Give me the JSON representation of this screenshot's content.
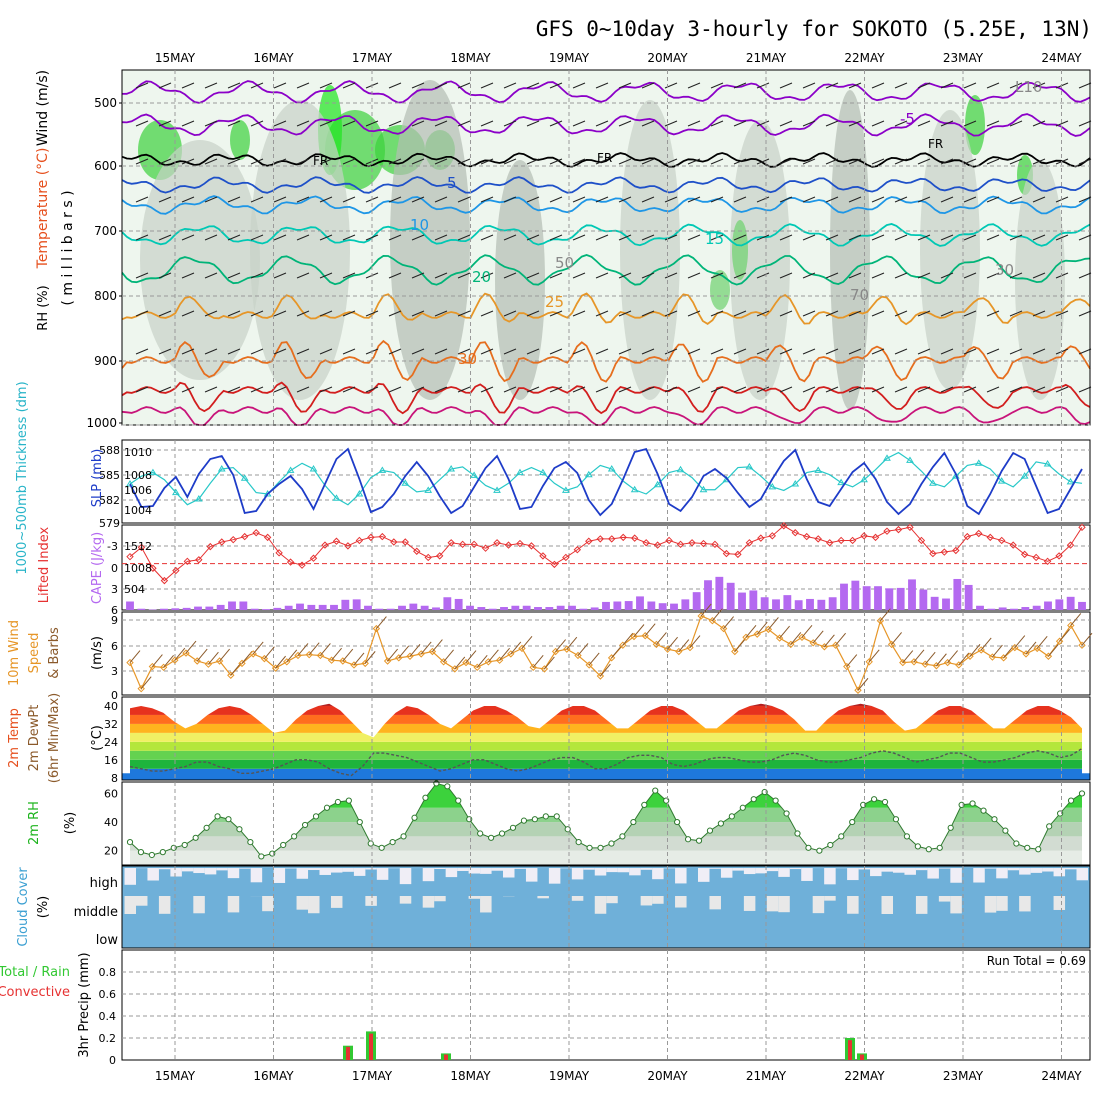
{
  "title": "GFS 0~10day 3-hourly for SOKOTO (5.25E, 13N)",
  "colors": {
    "temp_pos": "#ff8c00",
    "temp_neg": "#8b00c8",
    "iso5": "#1e50c8",
    "iso10": "#1e96e6",
    "iso15": "#00c8b4",
    "iso20": "#00b478",
    "iso25": "#e69628",
    "iso30": "#e66e1e",
    "rh": "#00c800",
    "cloud": "#6fb0d9",
    "slp": "#1e3cc8",
    "thickness": "#28c8c8",
    "lifted": "#e63232",
    "cape": "#b469f0",
    "wind10": "#e69628",
    "precip_total": "#32c832",
    "precip_conv": "#e63232"
  },
  "dates": [
    "15MAY",
    "16MAY",
    "17MAY",
    "18MAY",
    "19MAY",
    "20MAY",
    "21MAY",
    "22MAY",
    "23MAY",
    "24MAY"
  ],
  "panels": {
    "upper_air": {
      "ylabel_wind": "Wind (m/s)",
      "ylabel_temp": "Temperature (°C)",
      "ylabel_rh": "RH (%)",
      "ylabel_pressure": "( m i l l i b a r s )",
      "yticks": [
        "500",
        "600",
        "700",
        "800",
        "900",
        "1000"
      ],
      "fr_label": "FR",
      "contour_labels": [
        "-5",
        "5",
        "10",
        "15",
        "20",
        "25",
        "30",
        "50",
        "L10",
        "30",
        "70"
      ]
    },
    "slp": {
      "ylabel_left": "1000~500mb Thickness (dm)",
      "ylabel_right": "SLP (mb)",
      "yticks_left": [
        "588",
        "585",
        "582",
        "579"
      ],
      "yticks_right": [
        "1010",
        "1008",
        "1006",
        "1004"
      ]
    },
    "cape": {
      "ylabel_left": "Lifted Index",
      "ylabel_right": "CAPE (J/kg)",
      "yticks_left": [
        "-3",
        "0",
        "3",
        "6"
      ],
      "yticks_right": [
        "1512",
        "1008",
        "504"
      ]
    },
    "wind10": {
      "ylabel1": "10m Wind",
      "ylabel2": "Speed",
      "ylabel3": "& Barbs",
      "ylabel_unit": "(m/s)",
      "yticks": [
        "9",
        "6",
        "3",
        "0"
      ]
    },
    "temp2m": {
      "ylabel1": "2m Temp",
      "ylabel2": "2m DewPt",
      "ylabel3": "(6hr Min/Max)",
      "ylabel_unit": "(°C)",
      "yticks": [
        "40",
        "32",
        "24",
        "16",
        "8"
      ]
    },
    "rh2m": {
      "ylabel": "2m RH",
      "ylabel_unit": "(%)",
      "yticks": [
        "60",
        "40",
        "20"
      ]
    },
    "cloud": {
      "ylabel": "Cloud Cover",
      "ylabel_unit": "(%)",
      "levels": [
        "high",
        "middle",
        "low"
      ]
    },
    "precip": {
      "ylabel_left1": "Total / Rain",
      "ylabel_left2": "Convective",
      "ylabel": "3hr Precip (mm)",
      "yticks": [
        "0.8",
        "0.6",
        "0.4",
        "0.2",
        "0"
      ],
      "run_total": "Run Total = 0.69"
    }
  },
  "chart_data": [
    {
      "type": "line",
      "panel": "slp",
      "series": [
        {
          "name": "SLP (mb)",
          "values": [
            1006.5,
            1004.2,
            1004.3,
            1006.1,
            1007.2,
            1005.2,
            1007.5,
            1009.0,
            1009.3,
            1007.4,
            1003.6,
            1003.8,
            1005.5,
            1006.5,
            1007.3,
            1006.0,
            1004.0,
            1006.5,
            1009.0,
            1010.0,
            1007.0,
            1003.7,
            1004.2,
            1005.5,
            1007.3,
            1008.7,
            1007.3,
            1005.3,
            1003.6,
            1004.3,
            1006.2,
            1008.1,
            1009.3,
            1007.0,
            1004.0,
            1004.2,
            1006.3,
            1008.1,
            1008.7,
            1007.6,
            1004.9,
            1003.4,
            1004.5,
            1007.0,
            1009.7,
            1010.0,
            1007.5,
            1004.5,
            1003.8,
            1005.2,
            1007.3,
            1008.0,
            1007.1,
            1005.6,
            1004.2,
            1005.0,
            1007.0,
            1008.8,
            1009.9,
            1007.0,
            1004.7,
            1004.3,
            1006.0,
            1007.7,
            1008.6,
            1007.0,
            1004.7,
            1003.5,
            1004.5,
            1006.5,
            1008.2,
            1009.6,
            1007.5,
            1004.3,
            1003.5,
            1005.5,
            1007.8,
            1009.6,
            1009.0,
            1006.3,
            1003.6,
            1004.0,
            1006.0,
            1008.0
          ]
        },
        {
          "name": "1000~500mb Thickness (dm)",
          "values": [
            583.4,
            584.5,
            585.0,
            584.0,
            582.2,
            580.5,
            581.3,
            583.5,
            585.5,
            585.7,
            584.2,
            582.2,
            582.0,
            583.7,
            585.3,
            586.3,
            585.5,
            583.2,
            581.4,
            580.5,
            582.0,
            584.3,
            585.3,
            585.0,
            583.5,
            582.3,
            582.5,
            584.0,
            585.5,
            585.8,
            584.6,
            583.2,
            582.5,
            583.5,
            585.0,
            585.7,
            585.0,
            583.5,
            582.5,
            583.0,
            584.7,
            586.0,
            585.5,
            583.8,
            582.6,
            582.0,
            583.3,
            585.0,
            585.4,
            584.3,
            582.6,
            582.6,
            584.0,
            585.7,
            585.8,
            584.5,
            583.0,
            582.5,
            583.4,
            585.0,
            585.3,
            584.7,
            583.6,
            583.0,
            584.0,
            585.4,
            587.0,
            587.8,
            586.7,
            585.2,
            583.5,
            583.0,
            584.5,
            586.0,
            586.3,
            585.5,
            583.8,
            583.0,
            584.5,
            586.5,
            586.2,
            584.8,
            583.7,
            583.5
          ]
        }
      ],
      "ylim_slp": [
        1003,
        1010.5
      ],
      "ylim_thickness": [
        578.5,
        589
      ]
    },
    {
      "type": "bar",
      "panel": "cape",
      "series": [
        {
          "name": "CAPE (J/kg)",
          "values": [
            200,
            30,
            10,
            30,
            40,
            50,
            80,
            80,
            120,
            200,
            200,
            30,
            20,
            50,
            100,
            150,
            120,
            120,
            120,
            240,
            250,
            100,
            30,
            30,
            100,
            150,
            100,
            60,
            300,
            260,
            100,
            70,
            30,
            70,
            100,
            100,
            70,
            70,
            100,
            100,
            30,
            60,
            190,
            200,
            210,
            320,
            200,
            160,
            150,
            250,
            420,
            700,
            780,
            640,
            410,
            460,
            300,
            250,
            350,
            230,
            260,
            240,
            300,
            620,
            690,
            560,
            560,
            510,
            520,
            720,
            480,
            310,
            270,
            730,
            590,
            100,
            30,
            60,
            30,
            70,
            100,
            200,
            250,
            310,
            190
          ]
        },
        {
          "name": "Lifted Index",
          "values": [
            -0.9,
            -2.1,
            0.6,
            2.2,
            0.9,
            -0.3,
            -0.5,
            -2.2,
            -2.8,
            -3.1,
            -3.5,
            -4.0,
            -3.4,
            -1.4,
            -0.2,
            0.2,
            -0.7,
            -2.4,
            -2.9,
            -2.3,
            -3.0,
            -3.4,
            -3.5,
            -2.8,
            -2.8,
            -1.6,
            -0.8,
            -1.0,
            -2.7,
            -2.5,
            -2.5,
            -2.0,
            -2.7,
            -2.4,
            -2.6,
            -2.3,
            -1.0,
            0.1,
            -0.8,
            -1.8,
            -2.9,
            -3.2,
            -3.2,
            -3.4,
            -3.3,
            -2.7,
            -2.4,
            -3.0,
            -2.5,
            -2.7,
            -2.6,
            -2.5,
            -1.3,
            -1.2,
            -2.7,
            -3.3,
            -3.6,
            -4.9,
            -4.0,
            -3.5,
            -3.2,
            -2.7,
            -3.0,
            -3.0,
            -3.6,
            -3.4,
            -4.2,
            -4.4,
            -4.7,
            -3.0,
            -1.3,
            -1.5,
            -1.7,
            -3.5,
            -3.9,
            -3.4,
            -3.0,
            -2.4,
            -1.2,
            -0.8,
            -0.3,
            -1.0,
            -2.4,
            -4.7
          ]
        }
      ],
      "ylim_cape": [
        0,
        2000
      ],
      "ylim_li": [
        6,
        -5
      ]
    },
    {
      "type": "line",
      "panel": "wind10",
      "series": [
        {
          "name": "10m Wind Speed",
          "values": [
            4.1,
            0.8,
            3.6,
            3.5,
            4.4,
            5.3,
            4.3,
            3.9,
            4.3,
            2.5,
            4.0,
            5.2,
            4.6,
            3.4,
            4.2,
            5.0,
            5.1,
            5.0,
            4.4,
            4.3,
            3.8,
            4.0,
            8.4,
            4.3,
            4.7,
            4.9,
            5.2,
            5.5,
            4.2,
            3.3,
            4.1,
            3.5,
            4.2,
            4.4,
            5.2,
            5.9,
            3.5,
            3.3,
            5.5,
            5.8,
            5.0,
            3.8,
            2.4,
            4.7,
            6.3,
            7.4,
            7.5,
            6.4,
            5.8,
            5.5,
            6.0,
            10.0,
            9.4,
            8.4,
            5.5,
            7.3,
            7.7,
            8.3,
            7.2,
            6.4,
            7.3,
            6.6,
            6.1,
            6.3,
            3.6,
            0.6,
            4.2,
            9.4,
            6.4,
            4.1,
            4.2,
            3.9,
            3.7,
            4.1,
            3.8,
            4.9,
            5.7,
            4.8,
            4.7,
            6.0,
            5.2,
            5.9,
            4.9,
            6.8,
            8.8,
            6.3
          ]
        }
      ],
      "ylim": [
        0,
        10.5
      ]
    },
    {
      "type": "area",
      "panel": "temp2m",
      "series": [
        {
          "name": "2m Temp",
          "values": [
            39,
            40,
            39,
            37,
            33,
            30,
            32,
            36,
            39,
            40,
            39,
            36,
            32,
            28,
            29,
            34,
            38,
            40,
            41,
            38,
            33,
            28,
            26,
            32,
            37,
            40,
            39,
            36,
            32,
            30,
            34,
            38,
            40,
            40,
            38,
            35,
            31,
            30,
            34,
            38,
            40,
            40,
            38,
            34,
            30,
            30,
            34,
            38,
            40,
            40,
            38,
            34,
            30,
            30,
            34,
            38,
            40,
            41,
            40,
            38,
            34,
            29,
            29,
            34,
            38,
            40,
            41,
            40,
            38,
            33,
            29,
            30,
            34,
            38,
            40,
            40,
            38,
            34,
            30,
            30,
            34,
            38,
            40,
            40,
            38,
            35,
            30
          ]
        },
        {
          "name": "2m DewPt",
          "values": [
            13,
            12,
            11,
            11,
            12,
            13,
            15,
            15,
            13,
            12,
            10,
            10,
            11,
            12,
            14,
            16,
            16,
            15,
            12,
            10,
            9,
            13,
            19,
            19,
            18,
            17,
            15,
            13,
            11,
            12,
            14,
            16,
            16,
            14,
            12,
            11,
            12,
            14,
            16,
            17,
            17,
            15,
            12,
            12,
            14,
            17,
            18,
            18,
            17,
            14,
            13,
            14,
            16,
            17,
            17,
            16,
            15,
            15,
            16,
            18,
            19,
            18,
            16,
            15,
            15,
            16,
            17,
            19,
            20,
            19,
            17,
            15,
            16,
            17,
            19,
            19,
            17,
            15,
            15,
            16,
            17,
            19,
            20,
            19,
            17,
            18,
            21
          ]
        }
      ],
      "ylim": [
        7,
        44
      ]
    },
    {
      "type": "area",
      "panel": "rh2m",
      "series": [
        {
          "name": "2m RH",
          "values": [
            26,
            19,
            17,
            19,
            22,
            24,
            29,
            36,
            44,
            42,
            35,
            26,
            16,
            18,
            24,
            30,
            38,
            44,
            50,
            54,
            55,
            40,
            25,
            22,
            26,
            30,
            43,
            57,
            67,
            65,
            55,
            42,
            32,
            29,
            32,
            36,
            41,
            42,
            44,
            44,
            35,
            26,
            22,
            22,
            25,
            30,
            40,
            52,
            62,
            55,
            40,
            28,
            27,
            34,
            39,
            44,
            50,
            56,
            61,
            55,
            46,
            32,
            22,
            20,
            24,
            30,
            40,
            52,
            56,
            54,
            42,
            30,
            23,
            21,
            22,
            36,
            52,
            53,
            48,
            42,
            34,
            25,
            22,
            21,
            37,
            46,
            55,
            60
          ]
        }
      ],
      "ylim": [
        10,
        68
      ]
    },
    {
      "type": "bar",
      "panel": "precip",
      "categories": [
        "16MAY 18Z",
        "17MAY 00Z",
        "17MAY 18Z",
        "21MAY 21Z",
        "22MAY 00Z"
      ],
      "series": [
        {
          "name": "Total / Rain",
          "values": [
            0.13,
            0.26,
            0.06,
            0.2,
            0.06
          ]
        },
        {
          "name": "Convective",
          "values": [
            0.12,
            0.24,
            0.05,
            0.18,
            0.05
          ]
        }
      ],
      "ylim": [
        0,
        1.0
      ]
    }
  ]
}
